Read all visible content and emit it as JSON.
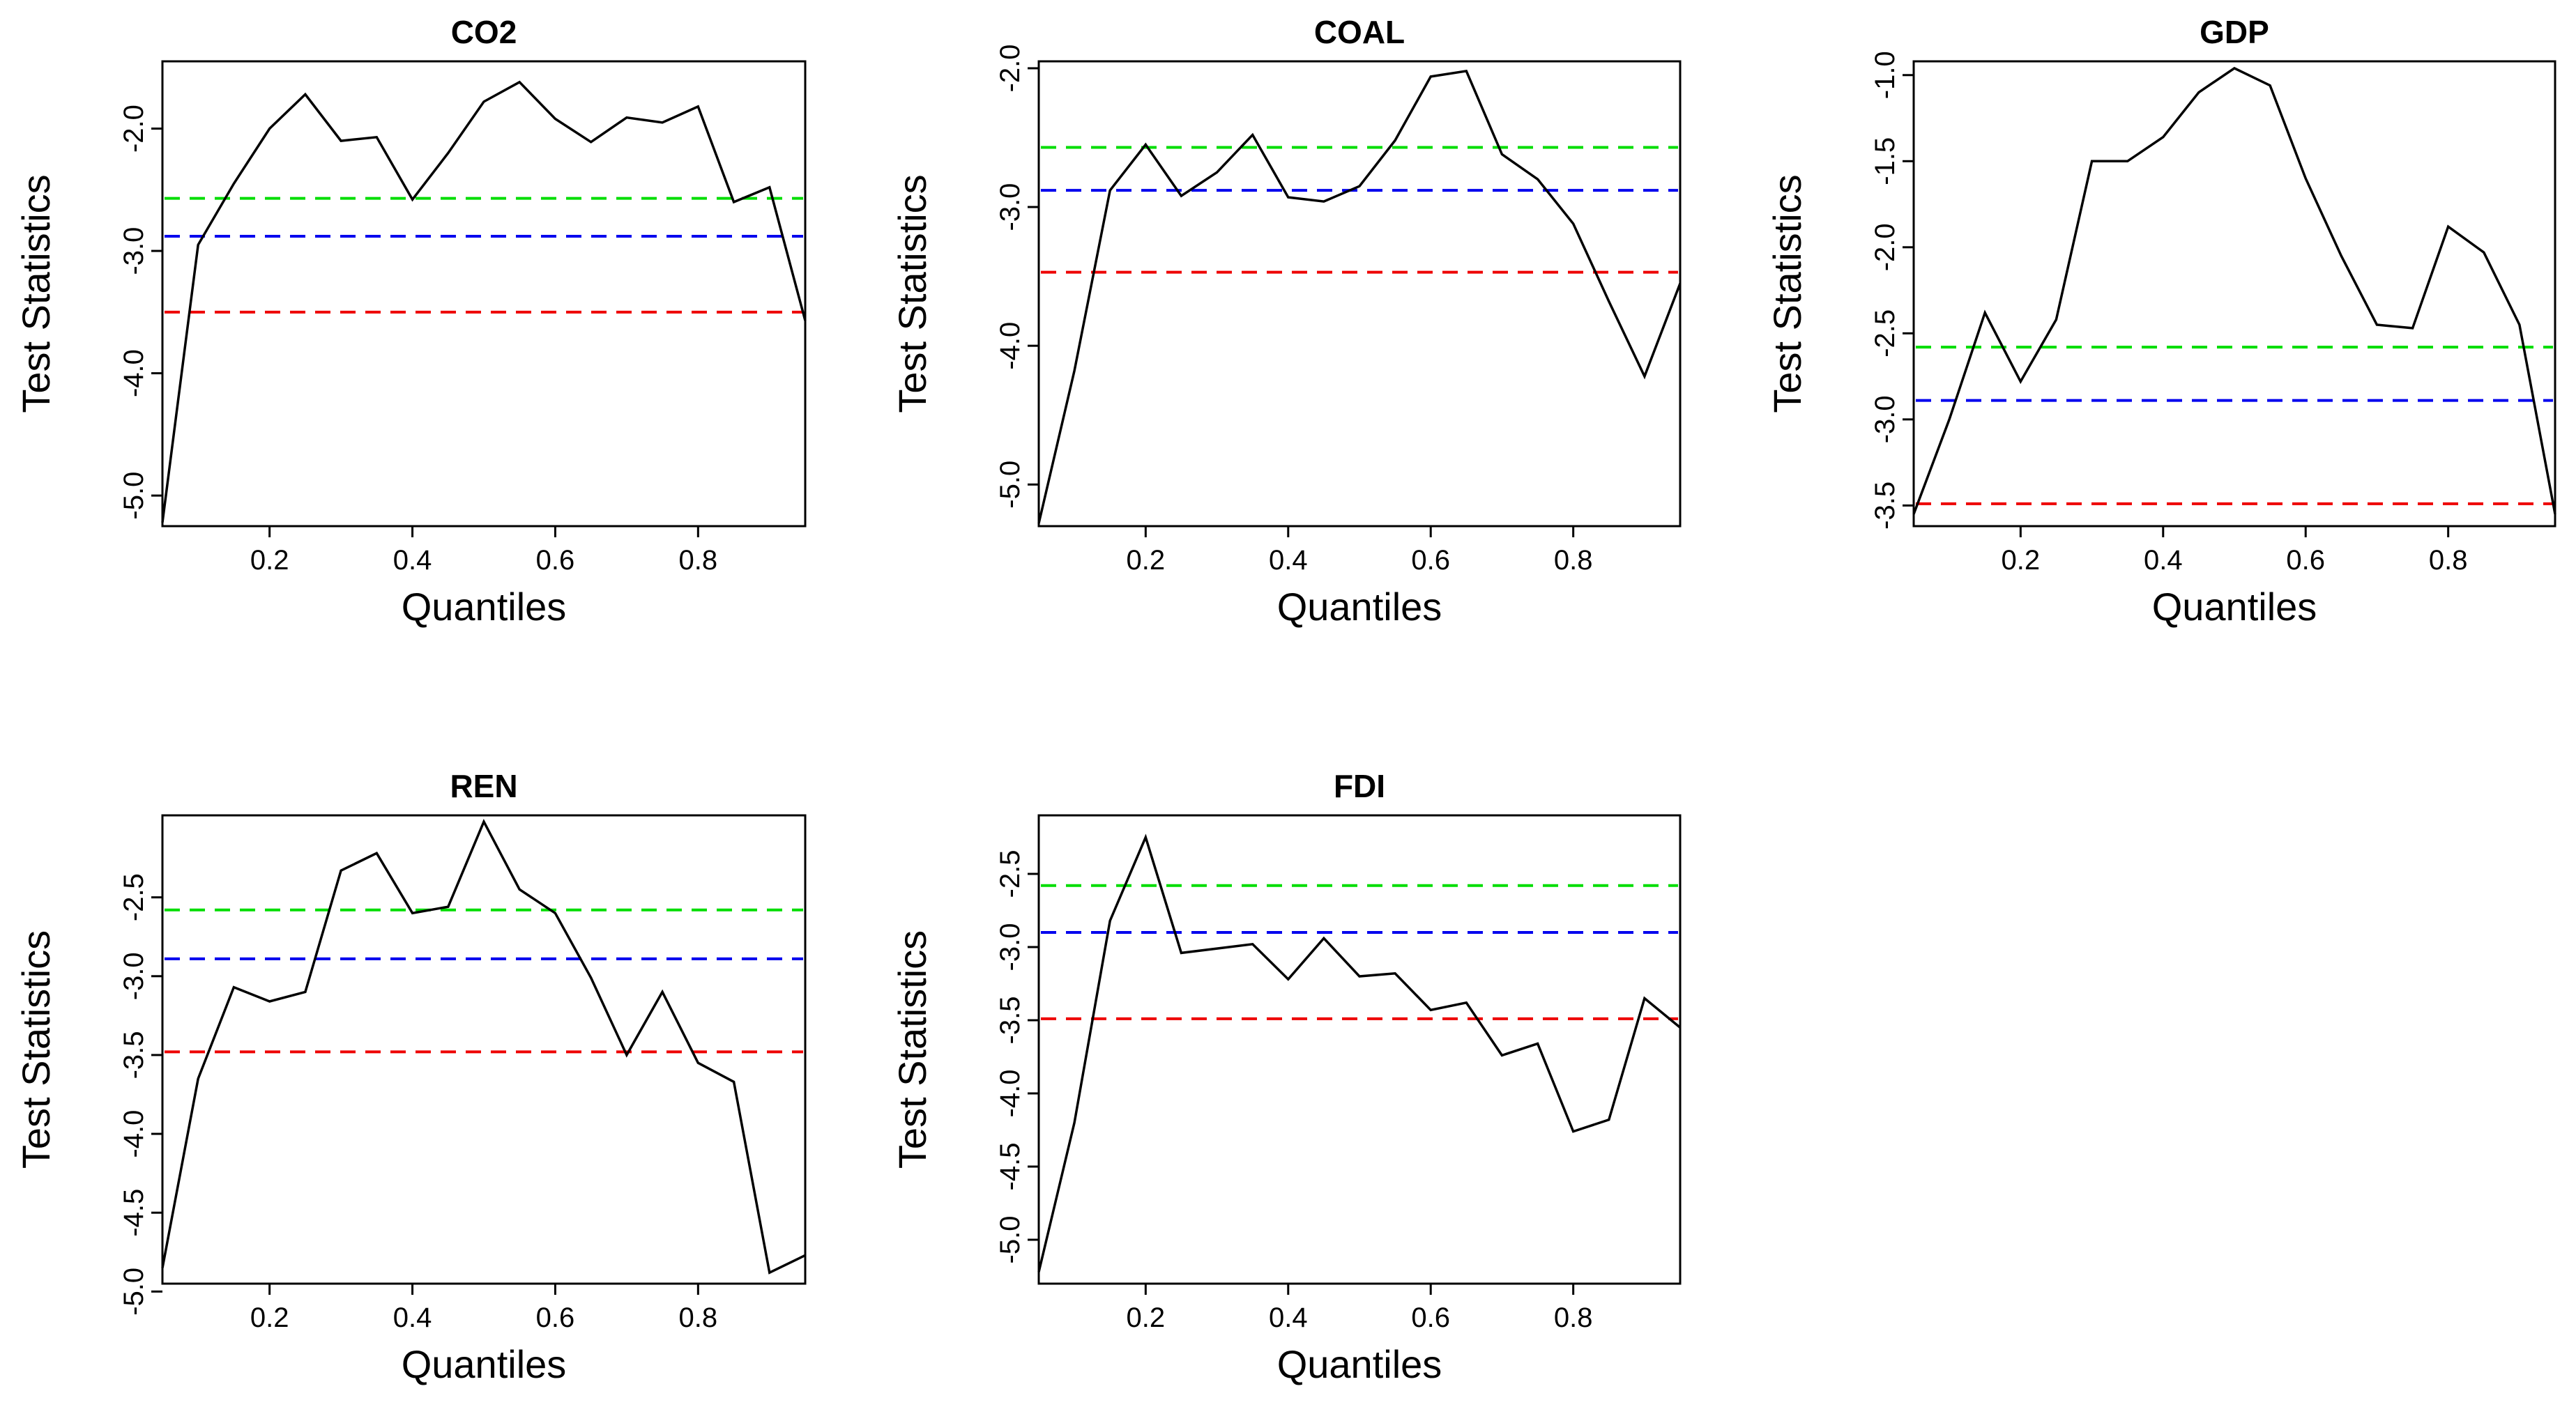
{
  "figure": {
    "ref_line_colors": {
      "green": "#00dd00",
      "blue": "#0000ee",
      "red": "#ee0000"
    }
  },
  "chart_data": [
    {
      "type": "line",
      "title": "CO2",
      "xlabel": "Quantiles",
      "ylabel": "Test Statistics",
      "xlim": [
        0.05,
        0.95
      ],
      "ylim": [
        -5.25,
        -1.45
      ],
      "xticks": [
        0.2,
        0.4,
        0.6,
        0.8
      ],
      "xtick_labels": [
        "0.2",
        "0.4",
        "0.6",
        "0.8"
      ],
      "yticks": [
        -5.0,
        -4.0,
        -3.0,
        -2.0
      ],
      "ytick_labels": [
        "-5.0",
        "-4.0",
        "-3.0",
        "-2.0"
      ],
      "x": [
        0.05,
        0.1,
        0.15,
        0.2,
        0.25,
        0.3,
        0.35,
        0.4,
        0.45,
        0.5,
        0.55,
        0.6,
        0.65,
        0.7,
        0.75,
        0.8,
        0.85,
        0.9,
        0.95
      ],
      "y": [
        -5.22,
        -2.95,
        -2.45,
        -2.0,
        -1.72,
        -2.1,
        -2.07,
        -2.58,
        -2.2,
        -1.78,
        -1.62,
        -1.92,
        -2.11,
        -1.91,
        -1.95,
        -1.82,
        -2.6,
        -2.48,
        -3.57
      ],
      "reference_lines": [
        {
          "name": "green",
          "y": -2.57
        },
        {
          "name": "blue",
          "y": -2.88
        },
        {
          "name": "red",
          "y": -3.5
        }
      ]
    },
    {
      "type": "line",
      "title": "COAL",
      "xlabel": "Quantiles",
      "ylabel": "Test Statistics",
      "xlim": [
        0.05,
        0.95
      ],
      "ylim": [
        -5.3,
        -1.95
      ],
      "xticks": [
        0.2,
        0.4,
        0.6,
        0.8
      ],
      "xtick_labels": [
        "0.2",
        "0.4",
        "0.6",
        "0.8"
      ],
      "yticks": [
        -5.0,
        -4.0,
        -3.0,
        -2.0
      ],
      "ytick_labels": [
        "-5.0",
        "-4.0",
        "-3.0",
        "-2.0"
      ],
      "x": [
        0.05,
        0.1,
        0.15,
        0.2,
        0.25,
        0.3,
        0.35,
        0.4,
        0.45,
        0.5,
        0.55,
        0.6,
        0.65,
        0.7,
        0.75,
        0.8,
        0.85,
        0.9,
        0.95
      ],
      "y": [
        -5.28,
        -4.18,
        -2.88,
        -2.55,
        -2.92,
        -2.75,
        -2.48,
        -2.93,
        -2.96,
        -2.85,
        -2.52,
        -2.06,
        -2.02,
        -2.62,
        -2.8,
        -3.12,
        -3.68,
        -4.22,
        -3.55
      ],
      "reference_lines": [
        {
          "name": "green",
          "y": -2.57
        },
        {
          "name": "blue",
          "y": -2.88
        },
        {
          "name": "red",
          "y": -3.47
        }
      ]
    },
    {
      "type": "line",
      "title": "GDP",
      "xlabel": "Quantiles",
      "ylabel": "Test Statistics",
      "xlim": [
        0.05,
        0.95
      ],
      "ylim": [
        -3.62,
        -0.92
      ],
      "xticks": [
        0.2,
        0.4,
        0.6,
        0.8
      ],
      "xtick_labels": [
        "0.2",
        "0.4",
        "0.6",
        "0.8"
      ],
      "yticks": [
        -3.5,
        -3.0,
        -2.5,
        -2.0,
        -1.5,
        -1.0
      ],
      "ytick_labels": [
        "-3.5",
        "-3.0",
        "-2.5",
        "-2.0",
        "-1.5",
        "-1.0"
      ],
      "x": [
        0.05,
        0.1,
        0.15,
        0.2,
        0.25,
        0.3,
        0.35,
        0.4,
        0.45,
        0.5,
        0.55,
        0.6,
        0.65,
        0.7,
        0.75,
        0.8,
        0.85,
        0.9,
        0.95
      ],
      "y": [
        -3.55,
        -3.0,
        -2.38,
        -2.78,
        -2.42,
        -1.5,
        -1.5,
        -1.36,
        -1.1,
        -0.96,
        -1.06,
        -1.6,
        -2.05,
        -2.45,
        -2.47,
        -1.88,
        -2.03,
        -2.45,
        -3.55
      ],
      "reference_lines": [
        {
          "name": "green",
          "y": -2.58
        },
        {
          "name": "blue",
          "y": -2.89
        },
        {
          "name": "red",
          "y": -3.49
        }
      ]
    },
    {
      "type": "line",
      "title": "REN",
      "xlabel": "Quantiles",
      "ylabel": "Test Statistics",
      "xlim": [
        0.05,
        0.95
      ],
      "ylim": [
        -4.95,
        -1.98
      ],
      "xticks": [
        0.2,
        0.4,
        0.6,
        0.8
      ],
      "xtick_labels": [
        "0.2",
        "0.4",
        "0.6",
        "0.8"
      ],
      "yticks": [
        -5.0,
        -4.5,
        -4.0,
        -3.5,
        -3.0,
        -2.5
      ],
      "ytick_labels": [
        "-5.0",
        "-4.5",
        "-4.0",
        "-3.5",
        "-3.0",
        "-2.5"
      ],
      "x": [
        0.05,
        0.1,
        0.15,
        0.2,
        0.25,
        0.3,
        0.35,
        0.4,
        0.45,
        0.5,
        0.55,
        0.6,
        0.65,
        0.7,
        0.75,
        0.8,
        0.85,
        0.9,
        0.95
      ],
      "y": [
        -4.85,
        -3.65,
        -3.07,
        -3.16,
        -3.1,
        -2.33,
        -2.22,
        -2.6,
        -2.56,
        -2.02,
        -2.45,
        -2.6,
        -3.01,
        -3.5,
        -3.1,
        -3.55,
        -3.67,
        -4.88,
        -4.77
      ],
      "reference_lines": [
        {
          "name": "green",
          "y": -2.58
        },
        {
          "name": "blue",
          "y": -2.89
        },
        {
          "name": "red",
          "y": -3.48
        }
      ]
    },
    {
      "type": "line",
      "title": "FDI",
      "xlabel": "Quantiles",
      "ylabel": "Test Statistics",
      "xlim": [
        0.05,
        0.95
      ],
      "ylim": [
        -5.3,
        -2.1
      ],
      "xticks": [
        0.2,
        0.4,
        0.6,
        0.8
      ],
      "xtick_labels": [
        "0.2",
        "0.4",
        "0.6",
        "0.8"
      ],
      "yticks": [
        -5.0,
        -4.5,
        -4.0,
        -3.5,
        -3.0,
        -2.5
      ],
      "ytick_labels": [
        "-5.0",
        "-4.5",
        "-4.0",
        "-3.5",
        "-3.0",
        "-2.5"
      ],
      "x": [
        0.05,
        0.1,
        0.15,
        0.2,
        0.25,
        0.3,
        0.35,
        0.4,
        0.45,
        0.5,
        0.55,
        0.6,
        0.65,
        0.7,
        0.75,
        0.8,
        0.85,
        0.9,
        0.95
      ],
      "y": [
        -5.22,
        -4.2,
        -2.82,
        -2.25,
        -3.04,
        -3.01,
        -2.98,
        -3.22,
        -2.94,
        -3.2,
        -3.18,
        -3.43,
        -3.38,
        -3.74,
        -3.66,
        -4.26,
        -4.18,
        -3.35,
        -3.55
      ],
      "reference_lines": [
        {
          "name": "green",
          "y": -2.58
        },
        {
          "name": "blue",
          "y": -2.9
        },
        {
          "name": "red",
          "y": -3.49
        }
      ]
    }
  ]
}
